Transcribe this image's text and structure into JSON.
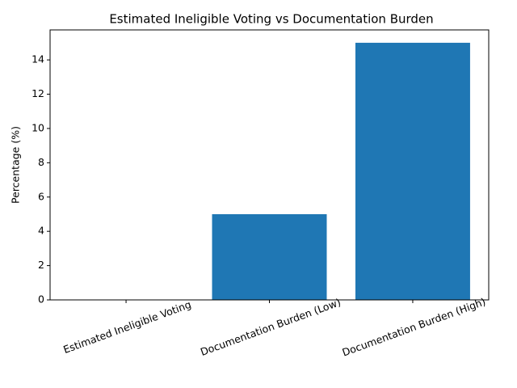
{
  "chart_data": {
    "type": "bar",
    "title": "Estimated Ineligible Voting vs Documentation Burden",
    "y_label": "Percentage (%)",
    "categories": [
      "Estimated Ineligible Voting",
      "Documentation Burden (Low)",
      "Documentation Burden (High)"
    ],
    "values": [
      0,
      5,
      15
    ],
    "color": "#1f77b4",
    "ylim": [
      0,
      15.75
    ],
    "yticks": [
      0,
      2,
      4,
      6,
      8,
      10,
      12,
      14
    ],
    "grid": false
  }
}
